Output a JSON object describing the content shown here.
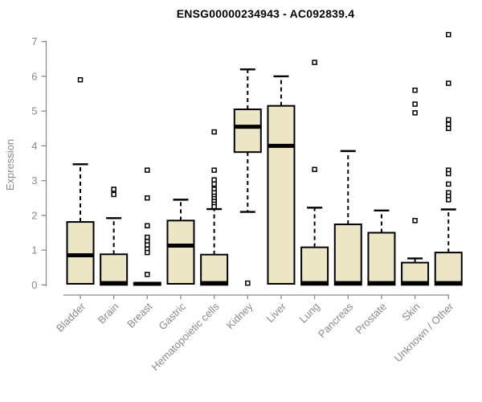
{
  "chart_data": {
    "type": "boxplot",
    "title": "ENSG00000234943 - AC092839.4",
    "ylabel": "Expression",
    "xlabel": "",
    "ylim": [
      0,
      7.2
    ],
    "yticks": [
      0,
      1,
      2,
      3,
      4,
      5,
      6,
      7
    ],
    "grid": false,
    "legend": "none",
    "colors": {
      "box_fill": "#ECE5C6",
      "box_stroke": "#000000",
      "axis_color": "#8a8a8a",
      "tick_text_color": "#8a8a8a",
      "title_color": "#000000",
      "outlier_fill": "#ffffff"
    },
    "categories": [
      "Bladder",
      "Brain",
      "Breast",
      "Gastric",
      "Hematopoietic cells",
      "Kidney",
      "Liver",
      "Lung",
      "Pancreas",
      "Prostate",
      "Skin",
      "Unknown / Other"
    ],
    "series": [
      {
        "name": "Bladder",
        "q1": 0.03,
        "median": 0.85,
        "q3": 1.81,
        "whisker_low": 0.03,
        "whisker_high": 3.47,
        "outliers": [
          5.9
        ]
      },
      {
        "name": "Brain",
        "q1": 0.0,
        "median": 0.05,
        "q3": 0.88,
        "whisker_low": 0.0,
        "whisker_high": 1.92,
        "outliers": [
          2.75,
          2.6
        ]
      },
      {
        "name": "Breast",
        "q1": 0.0,
        "median": 0.03,
        "q3": 0.06,
        "whisker_low": 0.0,
        "whisker_high": 0.06,
        "outliers": [
          3.3,
          2.5,
          1.7,
          1.37,
          1.25,
          1.15,
          1.03,
          0.93,
          0.3
        ]
      },
      {
        "name": "Gastric",
        "q1": 0.03,
        "median": 1.13,
        "q3": 1.85,
        "whisker_low": 0.03,
        "whisker_high": 2.45,
        "outliers": []
      },
      {
        "name": "Hematopoietic cells",
        "q1": 0.0,
        "median": 0.05,
        "q3": 0.87,
        "whisker_low": 0.0,
        "whisker_high": 2.18,
        "outliers": [
          4.4,
          3.3,
          3.02,
          2.9,
          2.75,
          2.65,
          2.55,
          2.48,
          2.4,
          2.32,
          2.25
        ]
      },
      {
        "name": "Kidney",
        "q1": 3.82,
        "median": 4.55,
        "q3": 5.05,
        "whisker_low": 2.1,
        "whisker_high": 6.2,
        "outliers": [
          0.05
        ]
      },
      {
        "name": "Liver",
        "q1": 0.03,
        "median": 4.0,
        "q3": 5.15,
        "whisker_low": 0.03,
        "whisker_high": 6.0,
        "outliers": []
      },
      {
        "name": "Lung",
        "q1": 0.0,
        "median": 0.05,
        "q3": 1.08,
        "whisker_low": 0.0,
        "whisker_high": 2.22,
        "outliers": [
          6.4,
          3.32
        ]
      },
      {
        "name": "Pancreas",
        "q1": 0.0,
        "median": 0.05,
        "q3": 1.74,
        "whisker_low": 0.0,
        "whisker_high": 3.85,
        "outliers": []
      },
      {
        "name": "Prostate",
        "q1": 0.0,
        "median": 0.05,
        "q3": 1.5,
        "whisker_low": 0.0,
        "whisker_high": 2.14,
        "outliers": []
      },
      {
        "name": "Skin",
        "q1": 0.0,
        "median": 0.05,
        "q3": 0.64,
        "whisker_low": 0.0,
        "whisker_high": 0.76,
        "outliers": [
          5.6,
          5.2,
          4.95,
          1.85
        ]
      },
      {
        "name": "Unknown / Other",
        "q1": 0.0,
        "median": 0.05,
        "q3": 0.93,
        "whisker_low": 0.0,
        "whisker_high": 2.17,
        "outliers": [
          7.2,
          5.8,
          4.75,
          4.62,
          4.5,
          3.3,
          3.2,
          2.9,
          2.65,
          2.55,
          2.45
        ]
      }
    ]
  }
}
